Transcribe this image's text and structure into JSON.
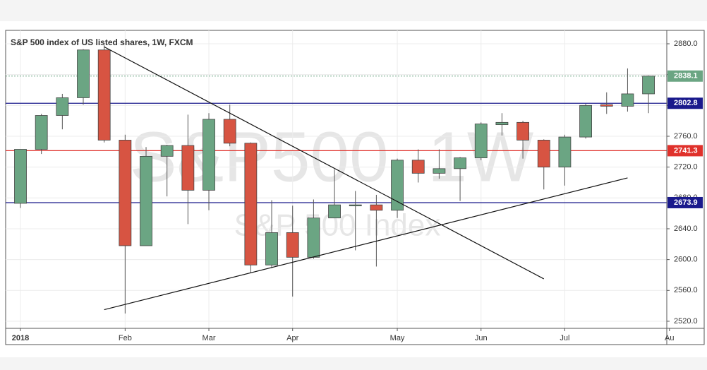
{
  "chart_data": {
    "type": "candlestick",
    "title": "S&P 500 index of US listed shares, 1W, FXCM",
    "watermark": "S&P500, 1W",
    "watermark_subtitle": "S&P 500 Index",
    "categories": [
      "2018",
      null,
      null,
      null,
      null,
      "Feb",
      null,
      null,
      null,
      "Mar",
      null,
      null,
      null,
      "Apr",
      null,
      null,
      null,
      null,
      "May",
      null,
      null,
      null,
      "Jun",
      null,
      null,
      null,
      "Jul",
      null,
      null,
      null,
      null,
      "Au"
    ],
    "open": [
      2673,
      2743,
      2787,
      2810,
      2872,
      2755,
      2618,
      2734,
      2748,
      2690,
      2782,
      2751,
      2593,
      2635,
      2603,
      2654,
      2670,
      2671,
      2664,
      2729,
      2712,
      2718,
      2732,
      2775,
      2778,
      2755,
      2720,
      2759,
      2801,
      2799,
      2815,
      null
    ],
    "high": [
      2743,
      2789,
      2815,
      2873,
      2878,
      2762,
      2746,
      2749,
      2788,
      2790,
      2801,
      2752,
      2677,
      2670,
      2678,
      2717,
      2689,
      2684,
      2731,
      2743,
      2743,
      2733,
      2778,
      2790,
      2780,
      2756,
      2762,
      2802,
      2817,
      2848,
      2839,
      null
    ],
    "low": [
      2667,
      2737,
      2769,
      2801,
      2752,
      2530,
      2618,
      2682,
      2646,
      2664,
      2747,
      2583,
      2589,
      2552,
      2601,
      2656,
      2612,
      2591,
      2654,
      2700,
      2705,
      2676,
      2729,
      2761,
      2731,
      2691,
      2696,
      2757,
      2789,
      2792,
      2790,
      null
    ],
    "close": [
      2743,
      2787,
      2810,
      2872,
      2755,
      2618,
      2734,
      2748,
      2690,
      2782,
      2751,
      2593,
      2635,
      2603,
      2654,
      2671,
      2671,
      2664,
      2729,
      2712,
      2718,
      2732,
      2776,
      2778,
      2755,
      2720,
      2759,
      2800,
      2799,
      2815,
      2838.1,
      null
    ],
    "up_color": "#6ba583",
    "down_color": "#d75442",
    "ylim": [
      2510.8,
      2897.4
    ],
    "yticks": [
      {
        "value": 2520,
        "label": "2520.0"
      },
      {
        "value": 2560,
        "label": "2560.0"
      },
      {
        "value": 2600,
        "label": "2600.0"
      },
      {
        "value": 2640,
        "label": "2640.0"
      },
      {
        "value": 2680,
        "label": "2680.0"
      },
      {
        "value": 2720,
        "label": "2720.0"
      },
      {
        "value": 2760,
        "label": "2760.0"
      },
      {
        "value": 2800,
        "label": "2800.0"
      },
      {
        "value": 2840,
        "label": "2840.0"
      },
      {
        "value": 2880,
        "label": "2880.0"
      }
    ],
    "grid": true,
    "levels": [
      {
        "value": 2838.1,
        "color": "#6ba583",
        "style": "dotted"
      },
      {
        "value": 2802.8,
        "color": "#1a1a8c",
        "style": "solid"
      },
      {
        "value": 2741.3,
        "color": "#e0312b",
        "style": "solid"
      },
      {
        "value": 2673.9,
        "color": "#1a1a8c",
        "style": "solid"
      }
    ],
    "trend_lines": [
      {
        "x": [
          4,
          29
        ],
        "y": [
          2535,
          2706
        ]
      },
      {
        "x": [
          4,
          25
        ],
        "y": [
          2876,
          2575
        ]
      }
    ]
  }
}
